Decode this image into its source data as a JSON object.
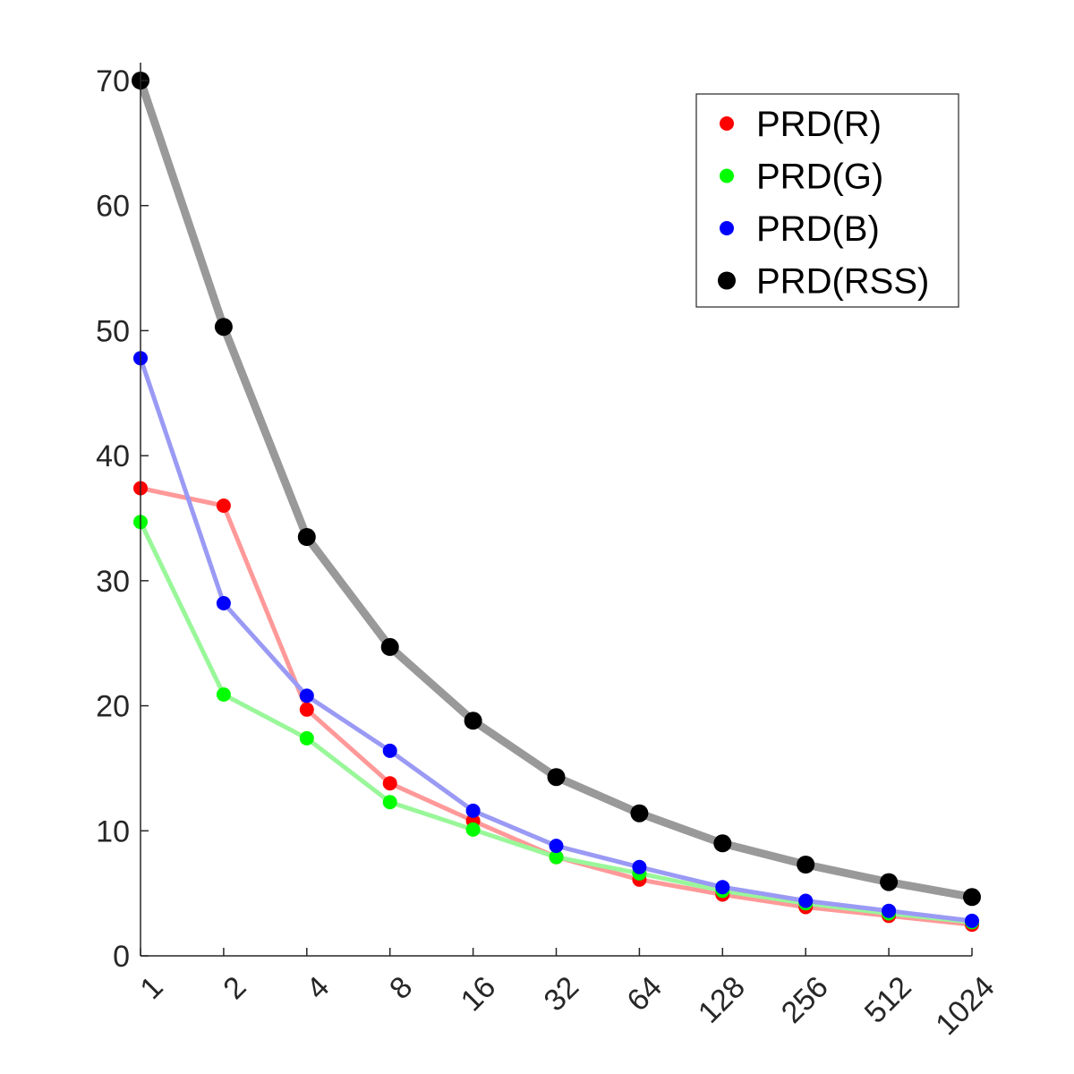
{
  "chart_data": {
    "type": "line",
    "title": "",
    "xlabel": "",
    "ylabel": "",
    "x": [
      1,
      2,
      4,
      8,
      16,
      32,
      64,
      128,
      256,
      512,
      1024
    ],
    "x_scale": "log2",
    "x_tick_labels": [
      "1",
      "2",
      "4",
      "8",
      "16",
      "32",
      "64",
      "128",
      "256",
      "512",
      "1024"
    ],
    "ylim": [
      0,
      70
    ],
    "y_ticks": [
      0,
      10,
      20,
      30,
      40,
      50,
      60,
      70
    ],
    "y_tick_labels": [
      "0",
      "10",
      "20",
      "30",
      "40",
      "50",
      "60",
      "70"
    ],
    "grid": false,
    "legend_position": "top-right",
    "series": [
      {
        "name": "PRD(R)",
        "color": "#ff0000",
        "line_color": "#ff9999",
        "values": [
          37.4,
          36.0,
          19.7,
          13.8,
          10.8,
          7.9,
          6.1,
          4.9,
          3.9,
          3.2,
          2.5
        ]
      },
      {
        "name": "PRD(G)",
        "color": "#00ff00",
        "line_color": "#99f799",
        "values": [
          34.7,
          20.9,
          17.4,
          12.3,
          10.1,
          7.9,
          6.6,
          5.2,
          4.2,
          3.4,
          2.7
        ]
      },
      {
        "name": "PRD(B)",
        "color": "#0000ff",
        "line_color": "#9a9af5",
        "values": [
          47.8,
          28.2,
          20.8,
          16.4,
          11.6,
          8.8,
          7.1,
          5.5,
          4.4,
          3.6,
          2.8
        ]
      },
      {
        "name": "PRD(RSS)",
        "color": "#000000",
        "line_color": "#999999",
        "values": [
          70.0,
          50.3,
          33.5,
          24.7,
          18.8,
          14.3,
          11.4,
          9.0,
          7.3,
          5.9,
          4.7
        ]
      }
    ]
  }
}
